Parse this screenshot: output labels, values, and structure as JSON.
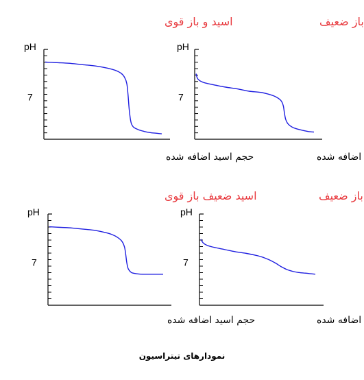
{
  "caption": "نمودارهای تیتراسیون",
  "chart_data": [
    {
      "type": "line",
      "title": "اسید قوی باز ضعیف",
      "xlabel": "حجم اسید اضافه شده",
      "ylabel": "pH",
      "ytick_labels": [
        "7"
      ],
      "ylim": [
        0,
        14
      ],
      "xlim": [
        0,
        100
      ],
      "series": [
        {
          "x": [
            0,
            1,
            2,
            4,
            8,
            15,
            25,
            35,
            45,
            55,
            63,
            68,
            72,
            74,
            75,
            76,
            78,
            82,
            88,
            95,
            100
          ],
          "y": [
            11.0,
            10.3,
            10.0,
            9.7,
            9.4,
            9.1,
            8.7,
            8.4,
            8.0,
            7.8,
            7.4,
            7.0,
            6.4,
            5.5,
            4.2,
            3.2,
            2.4,
            1.8,
            1.4,
            1.1,
            1.0
          ]
        }
      ]
    },
    {
      "type": "line",
      "title": "اسید و باز قوی",
      "xlabel": "حجم اسید اضافه شده",
      "ylabel": "pH",
      "ytick_labels": [
        "7"
      ],
      "ylim": [
        0,
        14
      ],
      "xlim": [
        0,
        100
      ],
      "series": [
        {
          "x": [
            0,
            10,
            20,
            30,
            40,
            50,
            60,
            65,
            68,
            70,
            71,
            72,
            73,
            74,
            76,
            80,
            85,
            90,
            95,
            100
          ],
          "y": [
            13.0,
            12.9,
            12.8,
            12.6,
            12.4,
            12.1,
            11.6,
            11.1,
            10.4,
            9.3,
            7.5,
            5.0,
            3.3,
            2.4,
            1.8,
            1.4,
            1.1,
            0.9,
            0.8,
            0.7
          ]
        }
      ]
    },
    {
      "type": "line",
      "title": "اسید و باز ضعیف",
      "xlabel": "حجم اسید اضافه شده",
      "ylabel": "pH",
      "ytick_labels": [
        "7"
      ],
      "ylim": [
        0,
        14
      ],
      "xlim": [
        0,
        100
      ],
      "series": [
        {
          "x": [
            0,
            2,
            5,
            10,
            20,
            30,
            40,
            50,
            55,
            60,
            65,
            70,
            75,
            80,
            85,
            90,
            95,
            100
          ],
          "y": [
            10.9,
            10.3,
            9.9,
            9.6,
            9.2,
            8.8,
            8.5,
            8.1,
            7.8,
            7.4,
            6.9,
            6.3,
            5.8,
            5.5,
            5.3,
            5.2,
            5.1,
            5.0
          ]
        }
      ]
    },
    {
      "type": "line",
      "title": "اسید ضعیف باز قوی",
      "xlabel": "حجم اسید اضافه شده",
      "ylabel": "pH",
      "ytick_labels": [
        "7"
      ],
      "ylim": [
        0,
        14
      ],
      "xlim": [
        0,
        100
      ],
      "series": [
        {
          "x": [
            0,
            10,
            20,
            30,
            40,
            50,
            55,
            60,
            64,
            66,
            67,
            68,
            69,
            70,
            72,
            76,
            82,
            90,
            100
          ],
          "y": [
            13.0,
            12.9,
            12.8,
            12.6,
            12.4,
            12.0,
            11.7,
            11.2,
            10.5,
            9.6,
            8.5,
            7.0,
            6.1,
            5.7,
            5.3,
            5.1,
            5.0,
            5.0,
            5.0
          ]
        }
      ]
    }
  ]
}
